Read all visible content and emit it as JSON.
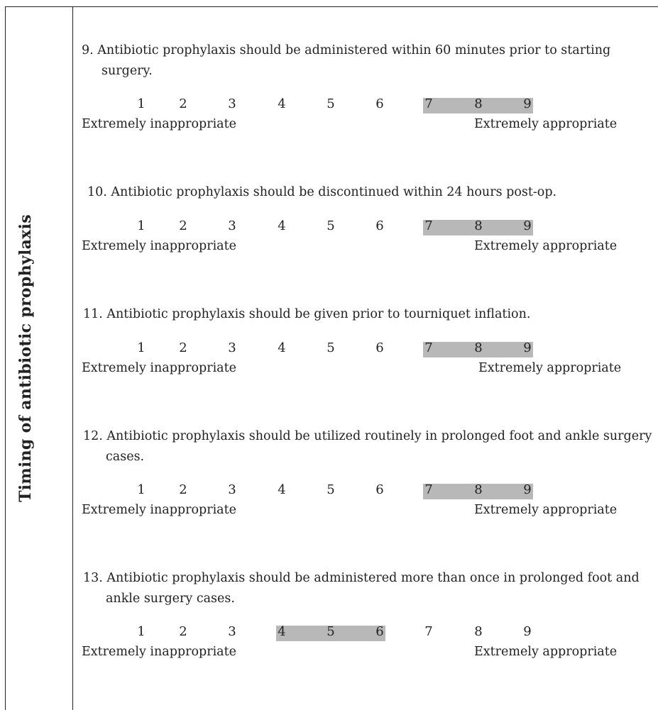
{
  "section": {
    "label": "Timing of antibiotic prophylaxis"
  },
  "scale": {
    "numbers": [
      "1",
      "2",
      "3",
      "4",
      "5",
      "6",
      "7",
      "8",
      "9"
    ],
    "left_anchor": "Extremely inappropriate",
    "right_anchor": "Extremely appropriate",
    "highlight_color": "#b8b8b8"
  },
  "questions": [
    {
      "text": "9.  Antibiotic prophylaxis should be administered within 60 minutes prior to starting surgery.",
      "highlighted": [
        "7",
        "8",
        "9"
      ]
    },
    {
      "text": "10.  Antibiotic prophylaxis should be discontinued within 24 hours post-op.",
      "highlighted": [
        "7",
        "8",
        "9"
      ]
    },
    {
      "text": "11.  Antibiotic prophylaxis should be given prior to tourniquet inflation.",
      "highlighted": [
        "7",
        "8",
        "9"
      ]
    },
    {
      "text": "12.  Antibiotic prophylaxis should be utilized routinely in prolonged foot and ankle surgery cases.",
      "highlighted": [
        "7",
        "8",
        "9"
      ]
    },
    {
      "text": "13.  Antibiotic prophylaxis should be administered more than once in prolonged foot and ankle surgery cases.",
      "highlighted": [
        "4",
        "5",
        "6"
      ]
    }
  ]
}
